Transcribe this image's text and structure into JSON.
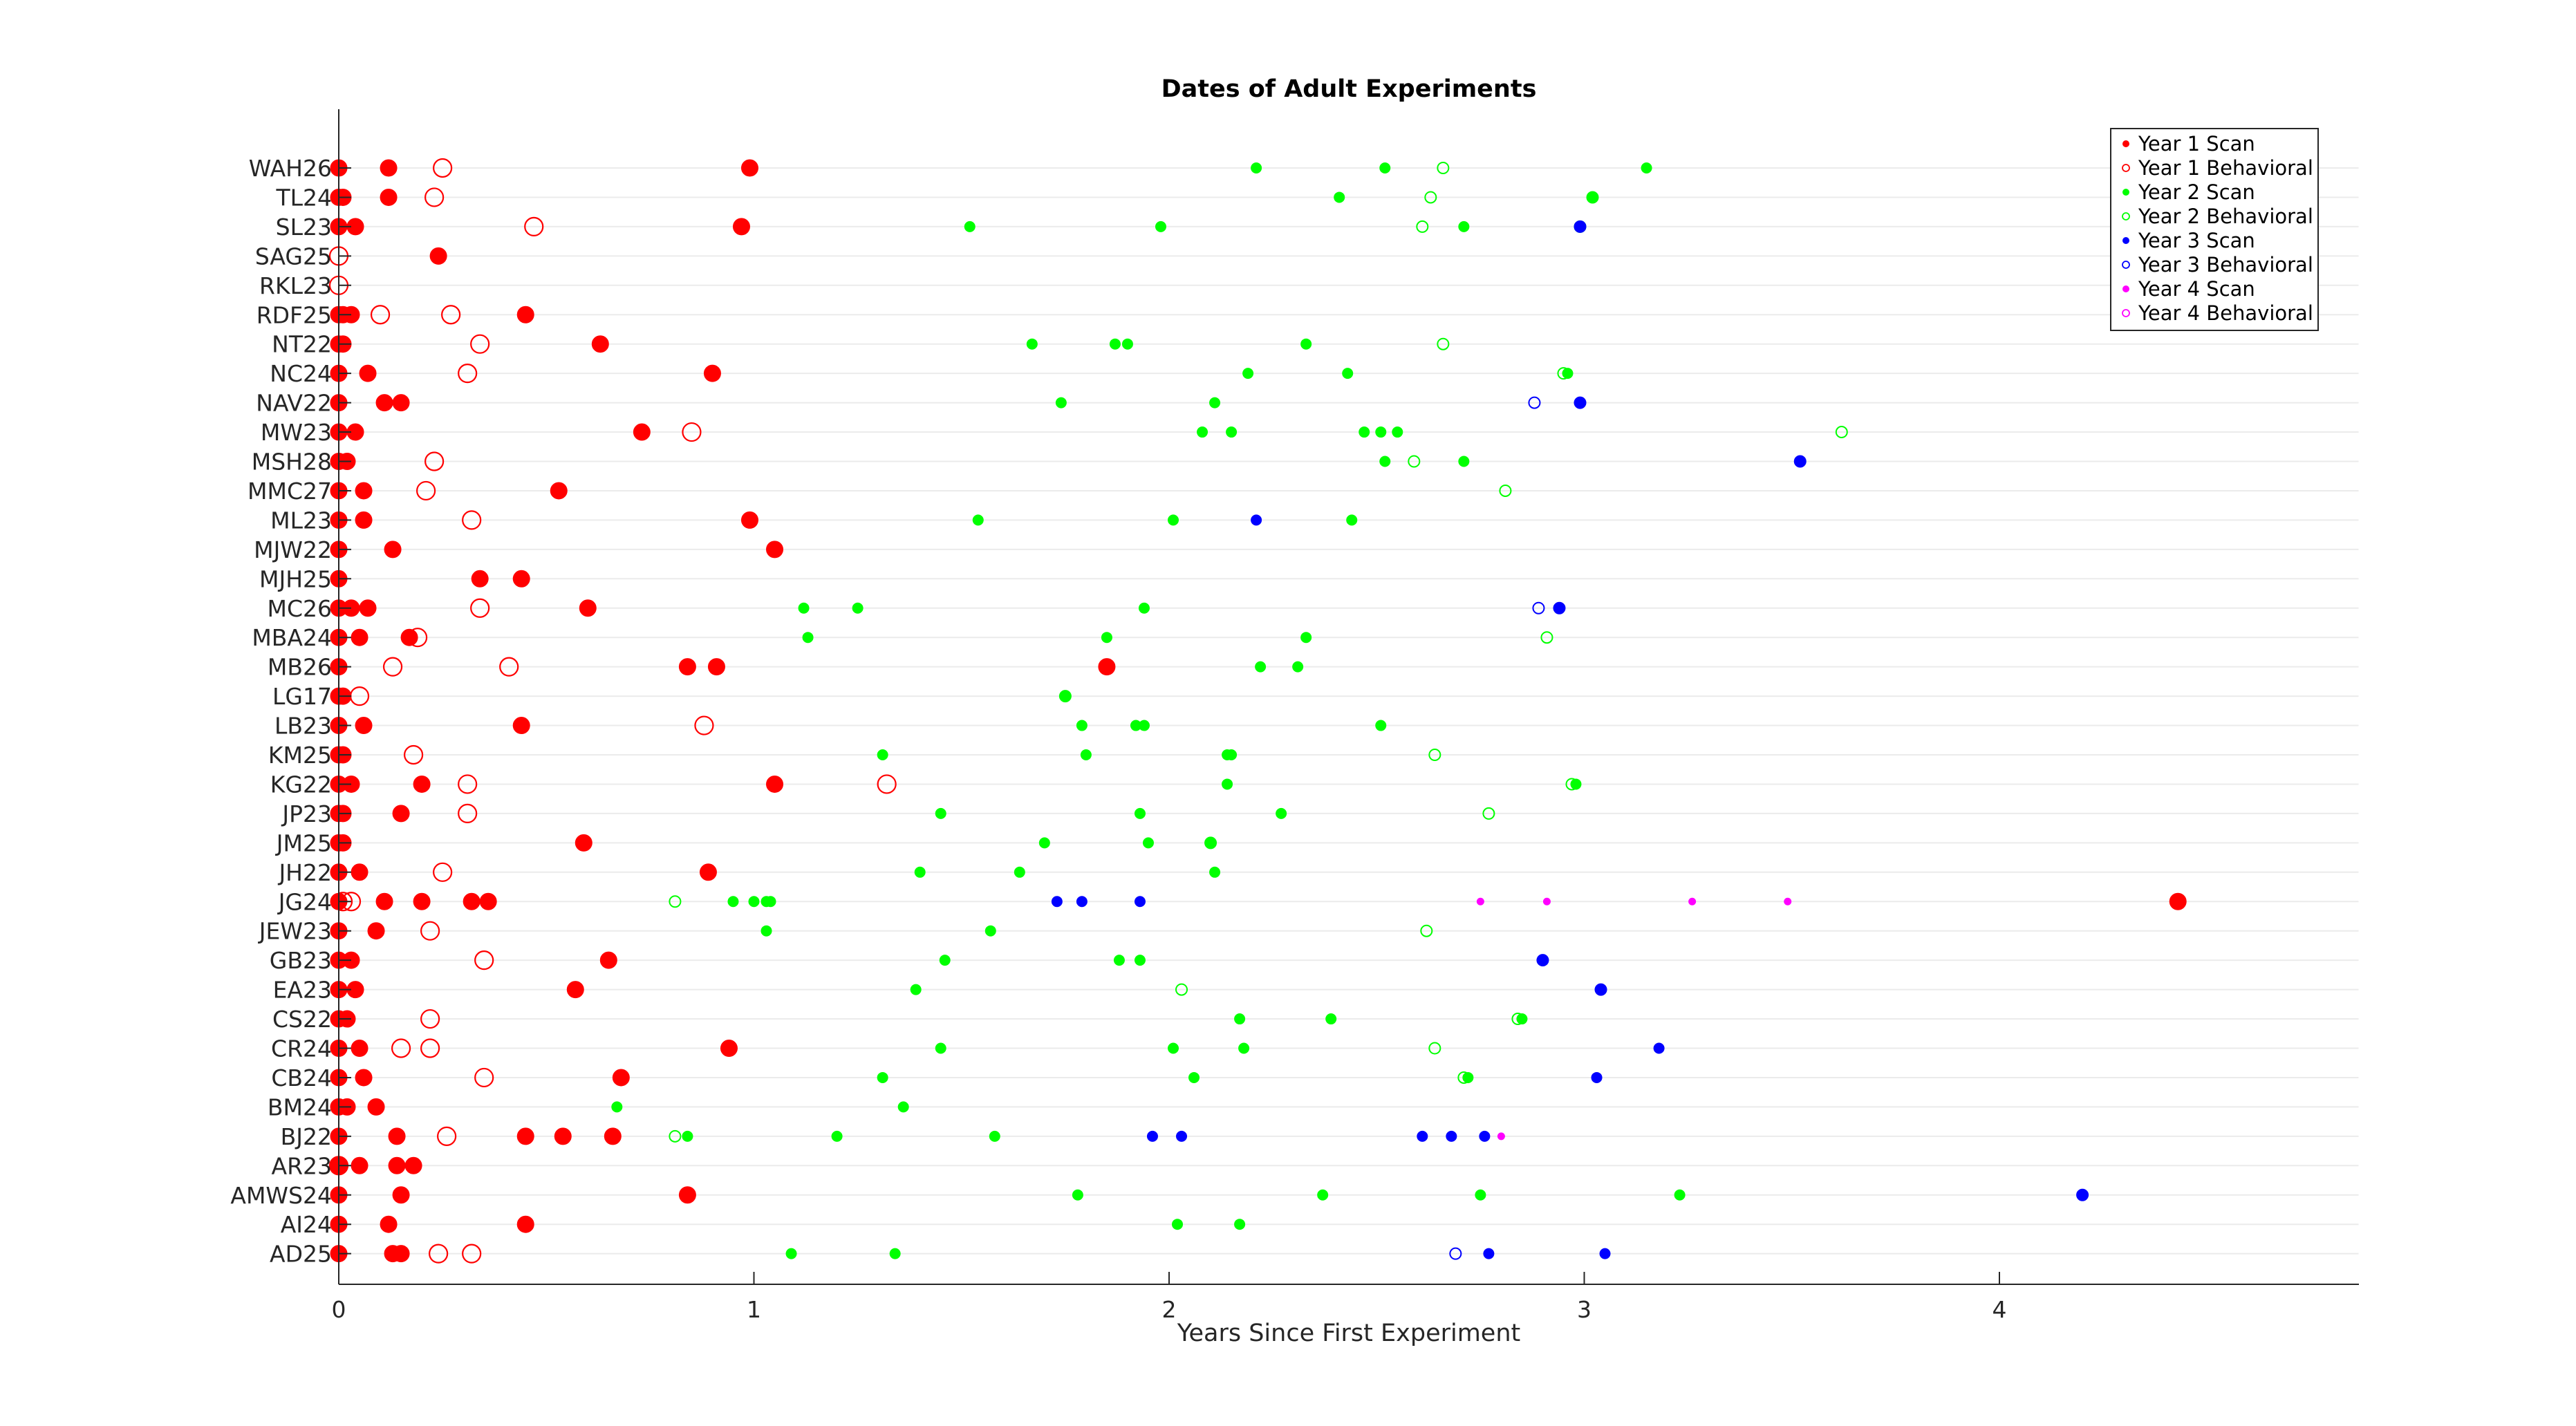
{
  "chart_data": {
    "type": "scatter",
    "title": "Dates of Adult Experiments",
    "xlabel": "Years Since First Experiment",
    "ylabel": "",
    "xlim": [
      0,
      4.9
    ],
    "xticks": [
      0,
      1,
      2,
      3,
      4
    ],
    "xtick_labels": [
      "0",
      "1",
      "2",
      "3",
      "4"
    ],
    "grid": "horizontal",
    "legend_position": "top-right",
    "categories": [
      "WAH26",
      "TL24",
      "SL23",
      "SAG25",
      "RKL23",
      "RDF25",
      "NT22",
      "NC24",
      "NAV22",
      "MW23",
      "MSH28",
      "MMC27",
      "ML23",
      "MJW22",
      "MJH25",
      "MC26",
      "MBA24",
      "MB26",
      "LG17",
      "LB23",
      "KM25",
      "KG22",
      "JP23",
      "JM25",
      "JH22",
      "JG24",
      "JEW23",
      "GB23",
      "EA23",
      "CS22",
      "CR24",
      "CB24",
      "BM24",
      "BJ22",
      "AR23",
      "AMWS24",
      "AI24",
      "AD25"
    ],
    "series": [
      {
        "name": "Year 1 Scan",
        "color": "#ff0000",
        "marker": "filled",
        "style": "adult",
        "points": [
          {
            "s": "WAH26",
            "x": [
              0,
              0.12,
              0.99
            ]
          },
          {
            "s": "TL24",
            "x": [
              0,
              0.01,
              0.12
            ]
          },
          {
            "s": "SL23",
            "x": [
              0,
              0.04,
              0.97
            ]
          },
          {
            "s": "SAG25",
            "x": [
              0.24
            ]
          },
          {
            "s": "RDF25",
            "x": [
              0,
              0.01,
              0.03,
              0.45
            ]
          },
          {
            "s": "NT22",
            "x": [
              0,
              0.01,
              0.63
            ]
          },
          {
            "s": "NC24",
            "x": [
              0,
              0.07,
              0.9
            ]
          },
          {
            "s": "NAV22",
            "x": [
              0,
              0.11,
              0.15
            ]
          },
          {
            "s": "MW23",
            "x": [
              0,
              0.04,
              0.73
            ]
          },
          {
            "s": "MSH28",
            "x": [
              0,
              0.02
            ]
          },
          {
            "s": "MMC27",
            "x": [
              0,
              0.06,
              0.53
            ]
          },
          {
            "s": "ML23",
            "x": [
              0,
              0.06,
              0.99
            ]
          },
          {
            "s": "MJW22",
            "x": [
              0,
              0.13,
              1.05
            ]
          },
          {
            "s": "MJH25",
            "x": [
              0,
              0.34,
              0.44
            ]
          },
          {
            "s": "MC26",
            "x": [
              0,
              0.03,
              0.07,
              0.6
            ]
          },
          {
            "s": "MBA24",
            "x": [
              0,
              0.05,
              0.17
            ]
          },
          {
            "s": "MB26",
            "x": [
              0,
              0.84,
              0.91,
              1.85
            ]
          },
          {
            "s": "LG17",
            "x": [
              0,
              0.01
            ]
          },
          {
            "s": "LB23",
            "x": [
              0,
              0.06,
              0.44
            ]
          },
          {
            "s": "KM25",
            "x": [
              0,
              0.01
            ]
          },
          {
            "s": "KG22",
            "x": [
              0,
              0.03,
              0.2,
              1.05
            ]
          },
          {
            "s": "JP23",
            "x": [
              0,
              0.01,
              0.15
            ]
          },
          {
            "s": "JM25",
            "x": [
              0,
              0.01,
              0.59
            ]
          },
          {
            "s": "JH22",
            "x": [
              0,
              0.05,
              0.89
            ]
          },
          {
            "s": "JG24",
            "x": [
              0,
              0.11,
              0.2,
              0.32,
              0.36,
              4.43
            ]
          },
          {
            "s": "JEW23",
            "x": [
              0,
              0.09
            ]
          },
          {
            "s": "GB23",
            "x": [
              0,
              0.03,
              0.65
            ]
          },
          {
            "s": "EA23",
            "x": [
              0,
              0.04,
              0.57
            ]
          },
          {
            "s": "CS22",
            "x": [
              0,
              0.02
            ]
          },
          {
            "s": "CR24",
            "x": [
              0,
              0.05,
              0.94
            ]
          },
          {
            "s": "CB24",
            "x": [
              0,
              0.06,
              0.68
            ]
          },
          {
            "s": "BM24",
            "x": [
              0,
              0.02,
              0.09
            ]
          },
          {
            "s": "BJ22",
            "x": [
              0,
              0.14,
              0.45,
              0.54,
              0.66
            ]
          },
          {
            "s": "AR23",
            "x": [
              0,
              0.05,
              0.14,
              0.18
            ]
          },
          {
            "s": "AMWS24",
            "x": [
              0,
              0.15,
              0.84
            ]
          },
          {
            "s": "AI24",
            "x": [
              0,
              0.12,
              0.45
            ]
          },
          {
            "s": "AD25",
            "x": [
              0,
              0.13,
              0.15
            ]
          }
        ]
      },
      {
        "name": "Year 1 Behavioral",
        "color": "#ff0000",
        "marker": "open",
        "style": "adult",
        "points": [
          {
            "s": "WAH26",
            "x": [
              0.25
            ]
          },
          {
            "s": "TL24",
            "x": [
              0.23
            ]
          },
          {
            "s": "SL23",
            "x": [
              0.47
            ]
          },
          {
            "s": "SAG25",
            "x": [
              0
            ]
          },
          {
            "s": "RKL23",
            "x": [
              0
            ]
          },
          {
            "s": "RDF25",
            "x": [
              0.1,
              0.27
            ]
          },
          {
            "s": "NT22",
            "x": [
              0.34
            ]
          },
          {
            "s": "NC24",
            "x": [
              0.31
            ]
          },
          {
            "s": "MW23",
            "x": [
              0.85
            ]
          },
          {
            "s": "MSH28",
            "x": [
              0.23
            ]
          },
          {
            "s": "MMC27",
            "x": [
              0.21
            ]
          },
          {
            "s": "ML23",
            "x": [
              0.32
            ]
          },
          {
            "s": "MC26",
            "x": [
              0.34
            ]
          },
          {
            "s": "MBA24",
            "x": [
              0.19
            ]
          },
          {
            "s": "MB26",
            "x": [
              0.13,
              0.41
            ]
          },
          {
            "s": "LG17",
            "x": [
              0.05
            ]
          },
          {
            "s": "LB23",
            "x": [
              0.88
            ]
          },
          {
            "s": "KM25",
            "x": [
              0.18
            ]
          },
          {
            "s": "KG22",
            "x": [
              0.31,
              1.32
            ]
          },
          {
            "s": "JP23",
            "x": [
              0.31
            ]
          },
          {
            "s": "JH22",
            "x": [
              0.25
            ]
          },
          {
            "s": "JG24",
            "x": [
              0.01,
              0.03
            ]
          },
          {
            "s": "JEW23",
            "x": [
              0.22
            ]
          },
          {
            "s": "GB23",
            "x": [
              0.35
            ]
          },
          {
            "s": "CS22",
            "x": [
              0.22
            ]
          },
          {
            "s": "CR24",
            "x": [
              0.15,
              0.22
            ]
          },
          {
            "s": "CB24",
            "x": [
              0.35
            ]
          },
          {
            "s": "BJ22",
            "x": [
              0.26
            ]
          },
          {
            "s": "AR23",
            "x": [
              0
            ]
          },
          {
            "s": "AD25",
            "x": [
              0.24,
              0.32
            ]
          }
        ]
      },
      {
        "name": "Year 2 Scan",
        "color": "#00ff00",
        "marker": "filled",
        "style": "child",
        "points": [
          {
            "s": "WAH26",
            "x": [
              2.21,
              2.52,
              3.15
            ]
          },
          {
            "s": "TL24",
            "x": [
              2.41,
              3.02
            ]
          },
          {
            "s": "SL23",
            "x": [
              1.52,
              1.98,
              2.71
            ]
          },
          {
            "s": "NT22",
            "x": [
              1.67,
              1.87,
              1.9,
              2.33
            ]
          },
          {
            "s": "NC24",
            "x": [
              2.19,
              2.43,
              2.96
            ]
          },
          {
            "s": "NAV22",
            "x": [
              1.74,
              2.11
            ]
          },
          {
            "s": "MW23",
            "x": [
              2.08,
              2.15,
              2.47,
              2.51,
              2.55
            ]
          },
          {
            "s": "MSH28",
            "x": [
              2.52,
              2.71
            ]
          },
          {
            "s": "ML23",
            "x": [
              1.54,
              2.01,
              2.44
            ]
          },
          {
            "s": "MC26",
            "x": [
              1.12,
              1.25,
              1.94
            ]
          },
          {
            "s": "MBA24",
            "x": [
              1.13,
              1.85,
              2.33
            ]
          },
          {
            "s": "MB26",
            "x": [
              2.22,
              2.31
            ]
          },
          {
            "s": "LG17",
            "x": [
              1.75
            ]
          },
          {
            "s": "LB23",
            "x": [
              1.79,
              1.92,
              1.94,
              2.51
            ]
          },
          {
            "s": "KM25",
            "x": [
              1.31,
              1.8,
              2.14,
              2.15
            ]
          },
          {
            "s": "KG22",
            "x": [
              2.14,
              2.98
            ]
          },
          {
            "s": "JP23",
            "x": [
              1.45,
              1.93,
              2.27
            ]
          },
          {
            "s": "JM25",
            "x": [
              1.7,
              1.95,
              2.1
            ]
          },
          {
            "s": "JH22",
            "x": [
              1.4,
              1.64,
              2.11
            ]
          },
          {
            "s": "JG24",
            "x": [
              0.95,
              1.0,
              1.03,
              1.04
            ]
          },
          {
            "s": "JEW23",
            "x": [
              1.03,
              1.57
            ]
          },
          {
            "s": "GB23",
            "x": [
              1.46,
              1.88,
              1.93
            ]
          },
          {
            "s": "EA23",
            "x": [
              1.39
            ]
          },
          {
            "s": "CS22",
            "x": [
              2.17,
              2.39,
              2.85
            ]
          },
          {
            "s": "CR24",
            "x": [
              1.45,
              2.01,
              2.18
            ]
          },
          {
            "s": "CB24",
            "x": [
              1.31,
              2.06,
              2.72
            ]
          },
          {
            "s": "BM24",
            "x": [
              0.67,
              1.36
            ]
          },
          {
            "s": "BJ22",
            "x": [
              0.84,
              1.2,
              1.58
            ]
          },
          {
            "s": "AMWS24",
            "x": [
              1.78,
              2.37,
              2.75,
              3.23
            ]
          },
          {
            "s": "AI24",
            "x": [
              2.02,
              2.17
            ]
          },
          {
            "s": "AD25",
            "x": [
              1.09,
              1.34
            ]
          }
        ]
      },
      {
        "name": "Year 2 Behavioral",
        "color": "#00ff00",
        "marker": "open",
        "style": "child",
        "points": [
          {
            "s": "WAH26",
            "x": [
              2.66
            ]
          },
          {
            "s": "TL24",
            "x": [
              2.63,
              3.02
            ]
          },
          {
            "s": "SL23",
            "x": [
              2.61,
              2.99
            ]
          },
          {
            "s": "NT22",
            "x": [
              2.66
            ]
          },
          {
            "s": "NC24",
            "x": [
              2.95
            ]
          },
          {
            "s": "MW23",
            "x": [
              3.62
            ]
          },
          {
            "s": "MSH28",
            "x": [
              2.59
            ]
          },
          {
            "s": "MMC27",
            "x": [
              2.81
            ]
          },
          {
            "s": "MBA24",
            "x": [
              2.91
            ]
          },
          {
            "s": "LG17",
            "x": [
              1.75
            ]
          },
          {
            "s": "KM25",
            "x": [
              2.64
            ]
          },
          {
            "s": "KG22",
            "x": [
              2.97
            ]
          },
          {
            "s": "JP23",
            "x": [
              2.77
            ]
          },
          {
            "s": "JM25",
            "x": [
              2.1
            ]
          },
          {
            "s": "JG24",
            "x": [
              0.81
            ]
          },
          {
            "s": "JEW23",
            "x": [
              2.62
            ]
          },
          {
            "s": "EA23",
            "x": [
              2.03
            ]
          },
          {
            "s": "CS22",
            "x": [
              2.84
            ]
          },
          {
            "s": "CR24",
            "x": [
              2.64
            ]
          },
          {
            "s": "CB24",
            "x": [
              2.71
            ]
          },
          {
            "s": "BJ22",
            "x": [
              0.81
            ]
          }
        ]
      },
      {
        "name": "Year 3 Scan",
        "color": "#0000ff",
        "marker": "filled",
        "style": "child",
        "points": [
          {
            "s": "SL23",
            "x": [
              2.99
            ]
          },
          {
            "s": "NAV22",
            "x": [
              2.99
            ]
          },
          {
            "s": "MSH28",
            "x": [
              3.52
            ]
          },
          {
            "s": "ML23",
            "x": [
              2.21
            ]
          },
          {
            "s": "MC26",
            "x": [
              2.94
            ]
          },
          {
            "s": "JG24",
            "x": [
              1.73,
              1.79,
              1.93
            ]
          },
          {
            "s": "GB23",
            "x": [
              2.9
            ]
          },
          {
            "s": "EA23",
            "x": [
              3.04
            ]
          },
          {
            "s": "CR24",
            "x": [
              3.18
            ]
          },
          {
            "s": "CB24",
            "x": [
              3.03
            ]
          },
          {
            "s": "BJ22",
            "x": [
              1.96,
              2.03,
              2.61,
              2.68,
              2.76
            ]
          },
          {
            "s": "AMWS24",
            "x": [
              4.2
            ]
          },
          {
            "s": "AD25",
            "x": [
              2.77,
              3.05
            ]
          }
        ]
      },
      {
        "name": "Year 3 Behavioral",
        "color": "#0000ff",
        "marker": "open",
        "style": "child",
        "points": [
          {
            "s": "SL23",
            "x": [
              2.99
            ]
          },
          {
            "s": "NAV22",
            "x": [
              2.88,
              2.99
            ]
          },
          {
            "s": "MSH28",
            "x": [
              3.52
            ]
          },
          {
            "s": "MC26",
            "x": [
              2.89,
              2.94
            ]
          },
          {
            "s": "GB23",
            "x": [
              2.9
            ]
          },
          {
            "s": "EA23",
            "x": [
              3.04
            ]
          },
          {
            "s": "AMWS24",
            "x": [
              4.2
            ]
          },
          {
            "s": "AD25",
            "x": [
              2.69
            ]
          }
        ]
      },
      {
        "name": "Year 4 Scan",
        "color": "#ff00ff",
        "marker": "filled",
        "style": "tiny",
        "points": [
          {
            "s": "JG24",
            "x": [
              2.75,
              2.91,
              3.26,
              3.49
            ]
          },
          {
            "s": "BJ22",
            "x": [
              2.8
            ]
          }
        ]
      },
      {
        "name": "Year 4 Behavioral",
        "color": "#ff00ff",
        "marker": "open",
        "style": "tiny",
        "points": []
      }
    ]
  }
}
